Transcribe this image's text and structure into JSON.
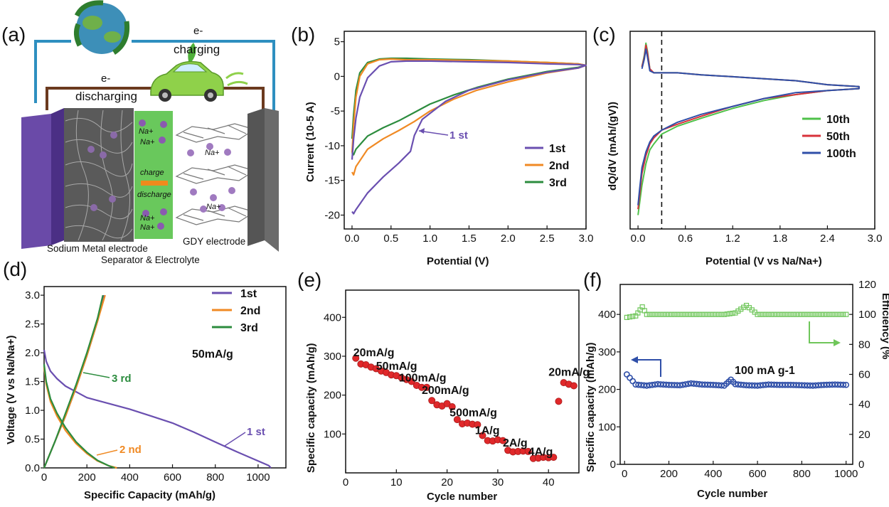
{
  "figure": {
    "panel_labels": [
      "(a)",
      "(b)",
      "(c)",
      "(d)",
      "(e)",
      "(f)"
    ]
  },
  "schematic": {
    "electron_charge": "e-",
    "charging": "charging",
    "electron_discharge": "e-",
    "discharging": "discharging",
    "na_labels": [
      "Na+",
      "Na+",
      "Na+",
      "Na+",
      "Na+",
      "Na+"
    ],
    "charge": "charge",
    "discharge": "discharge",
    "sodium_electrode": "Sodium Metal electrode",
    "gdy_electrode": "GDY electrode",
    "separator": "Separator & Electrolyte",
    "colors": {
      "left_electrode": "#6a4aa8",
      "right_electrode": "#6b6b6b",
      "separator": "#59c24a",
      "arrow": "#f08a1c",
      "wire_blue": "#2e8fc0",
      "wire_brown": "#6b3a1f"
    }
  },
  "chart_data": [
    {
      "panel": "b",
      "type": "line",
      "title": "",
      "xlabel": "Potential (V)",
      "ylabel": "Current (10-5 A)",
      "xlim": [
        -0.1,
        3.0
      ],
      "ylim": [
        -22,
        6.5
      ],
      "xticks": [
        "0.0",
        "0.5",
        "1.0",
        "1.5",
        "2.0",
        "2.5",
        "3.0"
      ],
      "yticks": [
        "5",
        "0",
        "-5",
        "-10",
        "-15",
        "-20"
      ],
      "annotation": "1 st",
      "series": [
        {
          "name": "1st",
          "color": "#6a4fb0",
          "x": [
            0.0,
            0.02,
            0.05,
            0.2,
            0.4,
            0.6,
            0.75,
            0.8,
            0.9,
            1.2,
            1.5,
            2.0,
            2.5,
            2.9,
            3.0,
            2.9,
            2.5,
            2.0,
            1.5,
            1.0,
            0.7,
            0.5,
            0.35,
            0.2,
            0.1,
            0.05,
            0.02,
            0.0
          ],
          "y": [
            -19.5,
            -19.8,
            -19.2,
            -16.8,
            -14.5,
            -12.5,
            -10.8,
            -8.5,
            -6.2,
            -3.6,
            -2.0,
            -0.5,
            0.6,
            1.2,
            1.6,
            1.7,
            1.8,
            2.0,
            2.1,
            2.2,
            2.2,
            2.1,
            1.5,
            -0.2,
            -3.0,
            -6.0,
            -9.0,
            -12.0
          ]
        },
        {
          "name": "2nd",
          "color": "#f08a24",
          "x": [
            0.0,
            0.02,
            0.05,
            0.2,
            0.4,
            0.6,
            0.8,
            1.0,
            1.3,
            1.6,
            2.0,
            2.5,
            2.9,
            3.0,
            2.9,
            2.5,
            2.0,
            1.5,
            1.0,
            0.7,
            0.5,
            0.35,
            0.2,
            0.1,
            0.05,
            0.02,
            0.0
          ],
          "y": [
            -13.8,
            -14.2,
            -13.0,
            -10.5,
            -9.0,
            -7.8,
            -6.5,
            -5.0,
            -3.3,
            -2.0,
            -0.8,
            0.5,
            1.2,
            1.6,
            1.8,
            2.0,
            2.2,
            2.3,
            2.4,
            2.4,
            2.5,
            2.4,
            1.8,
            0.0,
            -3.0,
            -7.0,
            -11.0
          ]
        },
        {
          "name": "3rd",
          "color": "#2c8c3e",
          "x": [
            0.0,
            0.02,
            0.05,
            0.2,
            0.4,
            0.6,
            0.8,
            1.0,
            1.3,
            1.6,
            2.0,
            2.5,
            2.9,
            3.0,
            2.9,
            2.5,
            2.0,
            1.5,
            1.0,
            0.7,
            0.5,
            0.35,
            0.2,
            0.1,
            0.05,
            0.02,
            0.0
          ],
          "y": [
            -11.0,
            -11.3,
            -10.5,
            -8.6,
            -7.4,
            -6.4,
            -5.2,
            -4.0,
            -2.7,
            -1.6,
            -0.4,
            0.7,
            1.3,
            1.6,
            1.8,
            2.0,
            2.2,
            2.4,
            2.5,
            2.6,
            2.6,
            2.5,
            2.0,
            0.5,
            -2.0,
            -5.5,
            -9.0
          ]
        }
      ]
    },
    {
      "panel": "c",
      "type": "line",
      "title": "",
      "xlabel": "Potential (V vs Na/Na+)",
      "ylabel": "dQ/dV (mAh/(gV))",
      "xlim": [
        -0.1,
        3.0
      ],
      "ylim": [
        0,
        1
      ],
      "xticks": [
        "0.0",
        "0.6",
        "1.2",
        "1.8",
        "2.4",
        "3.0"
      ],
      "yticks": [],
      "dashed_line_x": 0.3,
      "series": [
        {
          "name": "10th",
          "color": "#4fc14a",
          "x": [
            0.0,
            0.02,
            0.05,
            0.1,
            0.15,
            0.2,
            0.3,
            0.5,
            0.8,
            1.2,
            1.6,
            2.0,
            2.4,
            2.8,
            2.8,
            2.4,
            2.0,
            1.6,
            1.2,
            0.8,
            0.5,
            0.3,
            0.2,
            0.15,
            0.12,
            0.1,
            0.08,
            0.05
          ],
          "y": [
            0.07,
            0.13,
            0.22,
            0.33,
            0.4,
            0.43,
            0.48,
            0.52,
            0.56,
            0.61,
            0.65,
            0.68,
            0.7,
            0.71,
            0.72,
            0.73,
            0.75,
            0.76,
            0.77,
            0.78,
            0.79,
            0.79,
            0.79,
            0.81,
            0.9,
            0.94,
            0.88,
            0.82
          ]
        },
        {
          "name": "50th",
          "color": "#d8323a",
          "x": [
            0.0,
            0.02,
            0.05,
            0.1,
            0.15,
            0.2,
            0.3,
            0.5,
            0.8,
            1.2,
            1.6,
            2.0,
            2.4,
            2.8,
            2.8,
            2.4,
            2.0,
            1.6,
            1.2,
            0.8,
            0.5,
            0.3,
            0.2,
            0.15,
            0.12,
            0.1,
            0.08,
            0.05
          ],
          "y": [
            0.1,
            0.17,
            0.28,
            0.37,
            0.43,
            0.46,
            0.5,
            0.53,
            0.57,
            0.62,
            0.66,
            0.68,
            0.7,
            0.71,
            0.72,
            0.73,
            0.75,
            0.76,
            0.77,
            0.78,
            0.79,
            0.79,
            0.79,
            0.81,
            0.89,
            0.93,
            0.87,
            0.82
          ]
        },
        {
          "name": "100th",
          "color": "#2f4fa8",
          "x": [
            0.0,
            0.02,
            0.05,
            0.1,
            0.15,
            0.2,
            0.3,
            0.5,
            0.8,
            1.2,
            1.6,
            2.0,
            2.4,
            2.8,
            2.8,
            2.4,
            2.0,
            1.6,
            1.2,
            0.8,
            0.5,
            0.3,
            0.2,
            0.15,
            0.12,
            0.1,
            0.08,
            0.05
          ],
          "y": [
            0.12,
            0.2,
            0.31,
            0.39,
            0.44,
            0.47,
            0.5,
            0.54,
            0.58,
            0.62,
            0.66,
            0.69,
            0.7,
            0.71,
            0.72,
            0.73,
            0.75,
            0.76,
            0.77,
            0.78,
            0.79,
            0.79,
            0.79,
            0.8,
            0.87,
            0.91,
            0.86,
            0.81
          ]
        }
      ]
    },
    {
      "panel": "d",
      "type": "line",
      "title": "",
      "xlabel": "Specific Capacity (mAh/g)",
      "ylabel": "Voltage (V vs Na/Na+)",
      "xlim": [
        0,
        1130
      ],
      "ylim": [
        0,
        3.15
      ],
      "xticks": [
        "0",
        "200",
        "400",
        "600",
        "800",
        "1000"
      ],
      "yticks": [
        "0.0",
        "0.5",
        "1.0",
        "1.5",
        "2.0",
        "2.5",
        "3.0"
      ],
      "condition": "50mA/g",
      "annotations": [
        "1 st",
        "2 nd",
        "3 rd"
      ],
      "series": [
        {
          "name": "1st",
          "color": "#6a4fb0",
          "x": [
            0,
            10,
            30,
            60,
            100,
            200,
            300,
            400,
            500,
            600,
            700,
            800,
            900,
            1000,
            1050,
            1060
          ],
          "y": [
            2.05,
            1.85,
            1.68,
            1.55,
            1.42,
            1.22,
            1.12,
            1.02,
            0.9,
            0.78,
            0.62,
            0.45,
            0.28,
            0.12,
            0.04,
            0.0
          ]
        },
        {
          "name": "1st-charge",
          "color": "#6a4fb0",
          "x": [
            0,
            50,
            100,
            150,
            200,
            250,
            280
          ],
          "y": [
            0.0,
            0.45,
            0.9,
            1.4,
            1.95,
            2.55,
            3.0
          ]
        },
        {
          "name": "2nd",
          "color": "#f08a24",
          "x": [
            0,
            10,
            30,
            60,
            100,
            150,
            200,
            250,
            300,
            340
          ],
          "y": [
            1.75,
            1.45,
            1.15,
            0.9,
            0.65,
            0.42,
            0.25,
            0.12,
            0.04,
            0.0
          ]
        },
        {
          "name": "2nd-charge",
          "color": "#f08a24",
          "x": [
            0,
            50,
            100,
            150,
            200,
            250,
            285
          ],
          "y": [
            0.0,
            0.45,
            0.9,
            1.4,
            1.95,
            2.55,
            3.0
          ]
        },
        {
          "name": "3rd",
          "color": "#2c8c3e",
          "x": [
            0,
            10,
            30,
            60,
            100,
            150,
            200,
            250,
            300,
            330
          ],
          "y": [
            1.8,
            1.5,
            1.2,
            0.95,
            0.7,
            0.45,
            0.27,
            0.13,
            0.04,
            0.0
          ]
        },
        {
          "name": "3rd-charge",
          "color": "#2c8c3e",
          "x": [
            0,
            50,
            100,
            150,
            200,
            250,
            275
          ],
          "y": [
            0.0,
            0.45,
            0.95,
            1.45,
            2.0,
            2.6,
            3.0
          ]
        }
      ],
      "legend": [
        "1st",
        "2nd",
        "3rd"
      ]
    },
    {
      "panel": "e",
      "type": "scatter",
      "title": "",
      "xlabel": "Cycle number",
      "ylabel": "Specific capacity (mAh/g)",
      "xlim": [
        0,
        46
      ],
      "ylim": [
        0,
        470
      ],
      "xticks": [
        "0",
        "10",
        "20",
        "30",
        "40"
      ],
      "yticks": [
        "100",
        "200",
        "300",
        "400"
      ],
      "color": "#e0282a",
      "x": [
        2,
        3,
        4,
        5,
        6,
        7,
        8,
        9,
        10,
        11,
        12,
        13,
        14,
        15,
        16,
        17,
        18,
        19,
        20,
        21,
        22,
        23,
        24,
        25,
        26,
        27,
        28,
        29,
        30,
        31,
        32,
        33,
        34,
        35,
        36,
        37,
        38,
        39,
        40,
        41,
        42,
        43,
        44,
        45
      ],
      "y": [
        295,
        280,
        278,
        272,
        268,
        262,
        258,
        252,
        250,
        245,
        240,
        235,
        225,
        220,
        220,
        186,
        175,
        172,
        178,
        170,
        137,
        126,
        128,
        125,
        124,
        96,
        83,
        82,
        85,
        83,
        58,
        54,
        55,
        56,
        55,
        37,
        38,
        40,
        39,
        40,
        184,
        232,
        228,
        224
      ],
      "labels": [
        {
          "text": "20mA/g",
          "x": 1.5,
          "y": 300
        },
        {
          "text": "50mA/g",
          "x": 6,
          "y": 265
        },
        {
          "text": "100mA/g",
          "x": 10.5,
          "y": 235
        },
        {
          "text": "200mA/g",
          "x": 15,
          "y": 203
        },
        {
          "text": "500mA/g",
          "x": 20.5,
          "y": 145
        },
        {
          "text": "1A/g",
          "x": 25.5,
          "y": 100
        },
        {
          "text": "2A/g",
          "x": 31,
          "y": 68
        },
        {
          "text": "4A/g",
          "x": 36,
          "y": 45
        },
        {
          "text": "20mA/g",
          "x": 40,
          "y": 250
        }
      ]
    },
    {
      "panel": "f",
      "type": "scatter",
      "title": "",
      "xlabel": "Cycle number",
      "ylabel": "Specific capacity (mAh/g)",
      "ylabel_right": "Efficiency (%",
      "xlim": [
        -20,
        1030
      ],
      "ylim": [
        0,
        480
      ],
      "ylim_right": [
        0,
        120
      ],
      "xticks": [
        "0",
        "200",
        "400",
        "600",
        "800",
        "1000"
      ],
      "yticks": [
        "0",
        "100",
        "200",
        "300",
        "400"
      ],
      "yticks_right": [
        "0",
        "20",
        "40",
        "60",
        "80",
        "100",
        "120"
      ],
      "annotation": "100 mA g-1",
      "series": [
        {
          "name": "capacity",
          "axis": "left",
          "color": "#2f4fa8",
          "x": [
            10,
            50,
            100,
            150,
            200,
            250,
            300,
            350,
            400,
            450,
            480,
            500,
            550,
            600,
            650,
            700,
            750,
            800,
            850,
            900,
            950,
            1000
          ],
          "y": [
            240,
            213,
            210,
            214,
            212,
            211,
            216,
            213,
            212,
            210,
            226,
            214,
            211,
            210,
            213,
            212,
            212,
            211,
            210,
            212,
            213,
            212
          ]
        },
        {
          "name": "efficiency",
          "axis": "right",
          "color": "#6fc65a",
          "x": [
            10,
            50,
            80,
            100,
            150,
            200,
            250,
            300,
            350,
            400,
            450,
            500,
            550,
            600,
            650,
            700,
            750,
            800,
            850,
            900,
            950,
            1000
          ],
          "y": [
            98,
            99,
            105,
            100,
            100,
            100,
            100,
            100,
            100,
            100,
            100,
            101,
            106,
            100,
            100,
            100,
            100,
            100,
            100,
            100,
            100,
            100
          ]
        }
      ]
    }
  ]
}
